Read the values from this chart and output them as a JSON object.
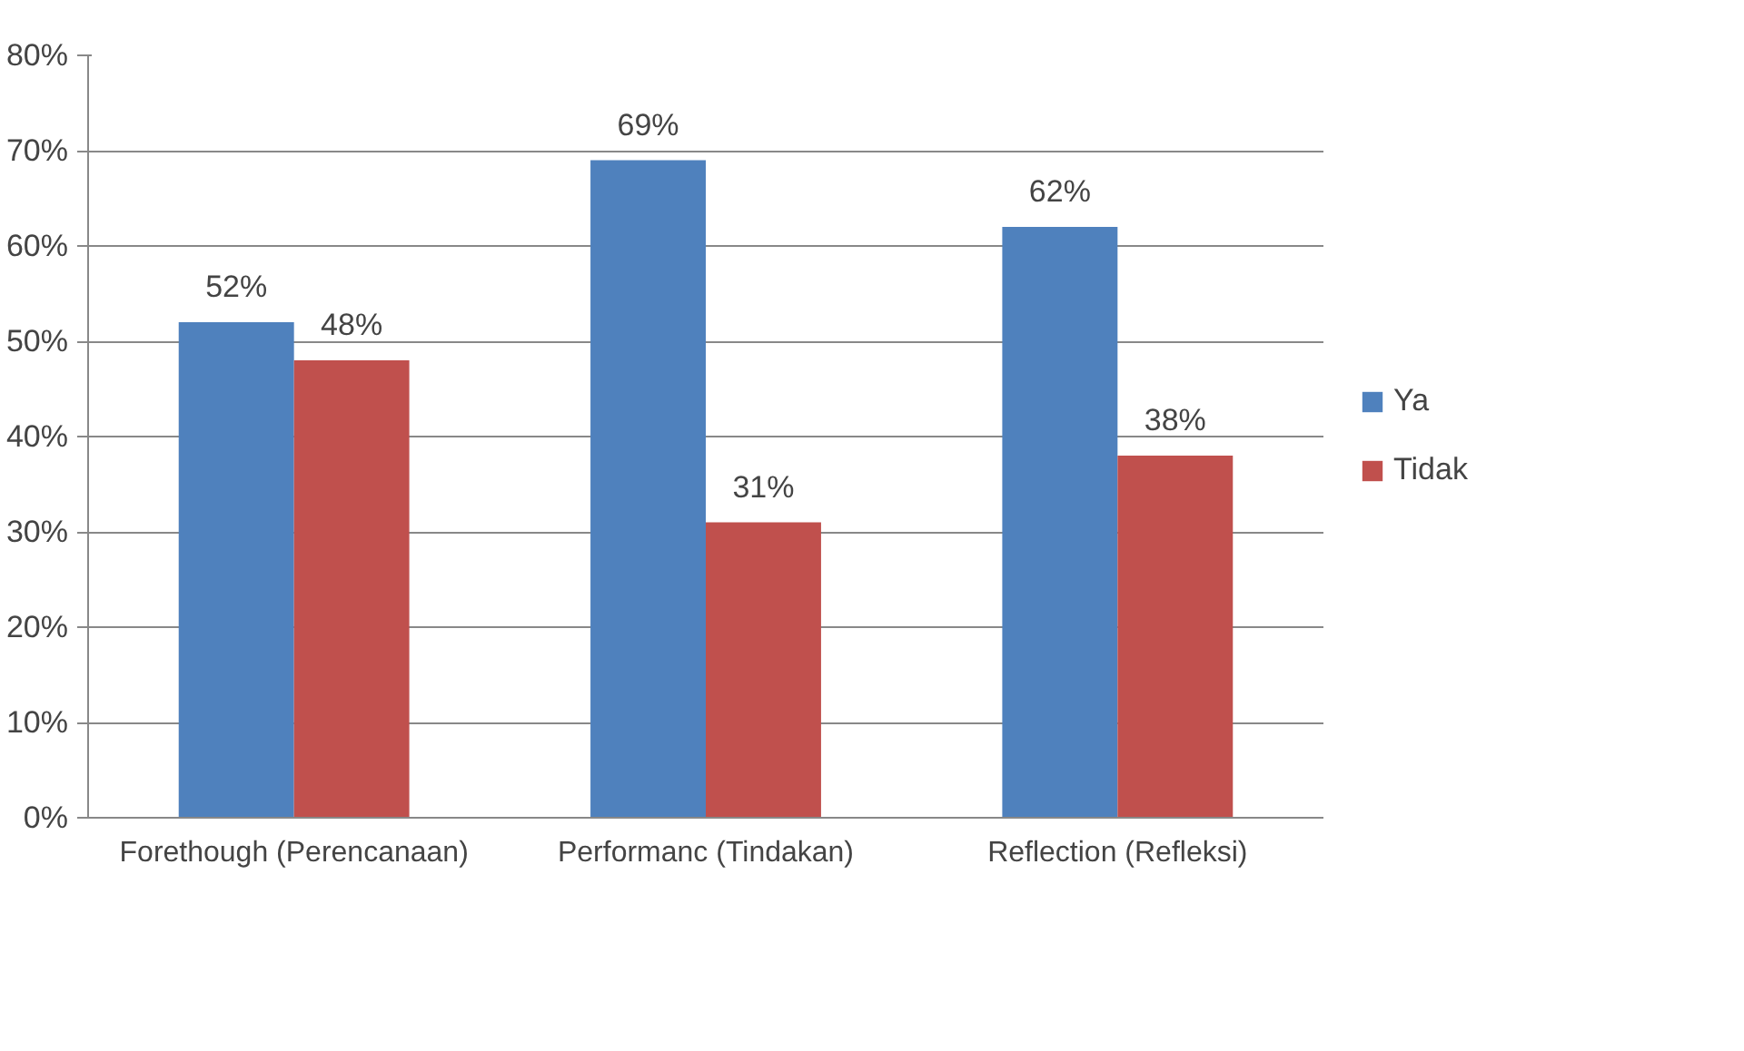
{
  "chart_data": {
    "type": "bar",
    "categories": [
      "Forethough (Perencanaan)",
      "Performanc (Tindakan)",
      "Reflection (Refleksi)"
    ],
    "series": [
      {
        "name": "Ya",
        "color": "#4f81bd",
        "values": [
          52,
          69,
          62
        ],
        "value_labels": [
          "52%",
          "69%",
          "62%"
        ]
      },
      {
        "name": "Tidak",
        "color": "#c0504d",
        "values": [
          48,
          31,
          38
        ],
        "value_labels": [
          "48%",
          "31%",
          "38%"
        ]
      }
    ],
    "ylim": [
      0,
      80
    ],
    "yticks": [
      {
        "value": 0,
        "label": "0%"
      },
      {
        "value": 10,
        "label": "10%"
      },
      {
        "value": 20,
        "label": "20%"
      },
      {
        "value": 30,
        "label": "30%"
      },
      {
        "value": 40,
        "label": "40%"
      },
      {
        "value": 50,
        "label": "50%"
      },
      {
        "value": 60,
        "label": "60%"
      },
      {
        "value": 70,
        "label": "70%"
      },
      {
        "value": 80,
        "label": "80%"
      }
    ],
    "grid": "y",
    "legend": "right"
  }
}
